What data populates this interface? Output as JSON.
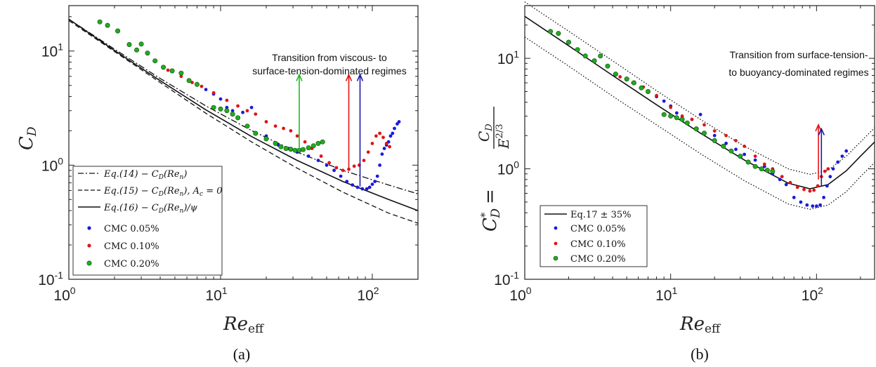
{
  "chart_data": [
    {
      "type": "scatter",
      "panel": "(a)",
      "xscale": "log",
      "yscale": "log",
      "xlim": [
        1,
        200
      ],
      "ylim": [
        0.1,
        25
      ],
      "xticks": [
        {
          "base": "10",
          "exp": "0",
          "value": 1
        },
        {
          "base": "10",
          "exp": "1",
          "value": 10
        },
        {
          "base": "10",
          "exp": "2",
          "value": 100
        }
      ],
      "yticks": [
        {
          "base": "10",
          "exp": "-1",
          "value": 0.1
        },
        {
          "base": "10",
          "exp": "0",
          "value": 1
        },
        {
          "base": "10",
          "exp": "1",
          "value": 10
        }
      ],
      "xlabel": "Re_eff",
      "ylabel": "C_D",
      "annotation": [
        "Transition from viscous- to",
        "surface-tension-dominated regimes"
      ],
      "arrows": [
        {
          "x": 33,
          "y0": 1.35,
          "y1": 6.2,
          "color": "#22bb22"
        },
        {
          "x": 70,
          "y0": 0.9,
          "y1": 6.2,
          "color": "#e01515"
        },
        {
          "x": 83,
          "y0": 0.65,
          "y1": 6.2,
          "color": "#1a1aaa"
        }
      ],
      "lines": [
        {
          "name": "Eq.(14) − C_D(Re_n)",
          "style": "dashdot",
          "x": [
            1,
            2,
            4,
            8,
            16,
            32,
            64,
            128,
            200
          ],
          "y": [
            19.0,
            10.4,
            5.75,
            3.3,
            2.01,
            1.3,
            0.9,
            0.67,
            0.56
          ]
        },
        {
          "name": "Eq.(15) − C_D(Re_n), A_c = 0",
          "style": "dashed",
          "x": [
            1,
            2,
            4,
            8,
            16,
            32,
            64,
            128,
            200
          ],
          "y": [
            18.5,
            9.9,
            5.3,
            2.85,
            1.6,
            0.94,
            0.58,
            0.38,
            0.31
          ]
        },
        {
          "name": "Eq.(16) − C_D(Re_n)/ψ",
          "style": "solid",
          "x": [
            1,
            2,
            4,
            8,
            16,
            32,
            64,
            128,
            200
          ],
          "y": [
            19.0,
            10.1,
            5.5,
            3.05,
            1.78,
            1.1,
            0.72,
            0.5,
            0.4
          ]
        }
      ],
      "series": [
        {
          "name": "CMC 0.05%",
          "color": "#1a1adc",
          "x": [
            8,
            9,
            10,
            11,
            12,
            14,
            16,
            20,
            24,
            28,
            32,
            38,
            44,
            50,
            56,
            62,
            68,
            74,
            80,
            86,
            92,
            96,
            100,
            104,
            108,
            112,
            116,
            120,
            124,
            128,
            132,
            136,
            140,
            146,
            150
          ],
          "y": [
            4.6,
            4.2,
            3.8,
            3.2,
            3.0,
            2.9,
            3.2,
            1.8,
            1.5,
            1.4,
            1.3,
            1.2,
            1.1,
            1.0,
            0.9,
            0.8,
            0.72,
            0.67,
            0.64,
            0.62,
            0.62,
            0.64,
            0.68,
            0.72,
            0.8,
            1.0,
            1.25,
            1.4,
            1.5,
            1.6,
            1.8,
            1.9,
            2.1,
            2.3,
            2.4
          ]
        },
        {
          "name": "CMC 0.10%",
          "color": "#e01515",
          "x": [
            4.5,
            5.5,
            6.5,
            7.5,
            9,
            11,
            13,
            15,
            17,
            20,
            23,
            26,
            29,
            32,
            36,
            40,
            46,
            52,
            58,
            64,
            70,
            76,
            82,
            88,
            94,
            100,
            106,
            112,
            118,
            124,
            130
          ],
          "y": [
            6.8,
            6.0,
            5.3,
            4.9,
            4.3,
            3.7,
            3.3,
            3.0,
            2.8,
            2.4,
            2.2,
            2.1,
            2.0,
            1.8,
            1.6,
            1.4,
            1.2,
            1.05,
            0.95,
            0.9,
            0.92,
            0.98,
            1.0,
            1.1,
            1.3,
            1.55,
            1.8,
            1.9,
            1.75,
            1.55,
            1.45
          ]
        },
        {
          "name": "CMC 0.20%",
          "color": "#22aa22",
          "x": [
            1.6,
            1.8,
            2.1,
            2.5,
            2.8,
            3.0,
            3.3,
            3.7,
            4.2,
            4.8,
            5.5,
            6.2,
            7,
            9,
            10,
            11,
            12,
            13,
            15,
            17,
            20,
            23,
            25,
            27,
            29,
            31,
            33,
            35,
            38,
            41,
            44,
            47
          ],
          "y": [
            18.0,
            16.8,
            15.0,
            11.4,
            10.2,
            11.5,
            9.6,
            8.2,
            7.2,
            6.7,
            6.4,
            5.5,
            5.1,
            3.2,
            3.1,
            3.0,
            2.8,
            2.6,
            2.2,
            1.9,
            1.7,
            1.55,
            1.45,
            1.4,
            1.38,
            1.35,
            1.35,
            1.37,
            1.42,
            1.48,
            1.55,
            1.6
          ]
        }
      ],
      "legend": {
        "placement": "bottom-left",
        "line_entries": [
          "Eq.(14) − C_D(Re_n)",
          "Eq.(15) − C_D(Re_n), A_c = 0",
          "Eq.(16) − C_D(Re_n)/ψ"
        ],
        "marker_entries": [
          "CMC 0.05%",
          "CMC 0.10%",
          "CMC 0.20%"
        ]
      }
    },
    {
      "type": "scatter",
      "panel": "(b)",
      "xscale": "log",
      "yscale": "log",
      "xlim": [
        1,
        250
      ],
      "ylim": [
        0.1,
        30
      ],
      "xticks": [
        {
          "base": "10",
          "exp": "0",
          "value": 1
        },
        {
          "base": "10",
          "exp": "1",
          "value": 10
        },
        {
          "base": "10",
          "exp": "2",
          "value": 100
        }
      ],
      "yticks": [
        {
          "base": "10",
          "exp": "-1",
          "value": 0.1
        },
        {
          "base": "10",
          "exp": "0",
          "value": 1
        },
        {
          "base": "10",
          "exp": "1",
          "value": 10
        }
      ],
      "xlabel": "Re_eff",
      "ylabel": "C*_D = C_D / E^(2/3)",
      "annotation": [
        "Transition from surface-tension-",
        "to buoyancy-dominated regimes"
      ],
      "arrows": [
        {
          "x": 103,
          "y0": 0.8,
          "y1": 2.5,
          "color": "#e01515"
        },
        {
          "x": 108,
          "y0": 0.7,
          "y1": 2.3,
          "color": "#1a1aaa"
        }
      ],
      "lines": [
        {
          "name": "Eq.17",
          "style": "solid",
          "x": [
            1,
            2,
            4,
            8,
            16,
            32,
            64,
            90,
            120,
            160,
            200,
            250
          ],
          "y": [
            24.0,
            13.0,
            7.0,
            3.8,
            2.1,
            1.2,
            0.74,
            0.66,
            0.72,
            0.96,
            1.3,
            1.75
          ]
        },
        {
          "name": "+35%",
          "style": "dotted",
          "x": [
            1,
            2,
            4,
            8,
            16,
            32,
            64,
            90,
            120,
            160,
            200,
            250
          ],
          "y": [
            32.4,
            17.6,
            9.5,
            5.1,
            2.8,
            1.6,
            1.0,
            0.89,
            0.97,
            1.3,
            1.75,
            2.35
          ]
        },
        {
          "name": "−35%",
          "style": "dotted",
          "x": [
            1,
            2,
            4,
            8,
            16,
            32,
            64,
            90,
            120,
            160,
            200,
            250
          ],
          "y": [
            15.6,
            8.5,
            4.55,
            2.5,
            1.37,
            0.78,
            0.48,
            0.43,
            0.47,
            0.62,
            0.85,
            1.14
          ]
        }
      ],
      "series": [
        {
          "name": "CMC 0.05%",
          "color": "#1a1adc",
          "x": [
            8,
            9,
            10,
            11,
            12,
            14,
            16,
            20,
            24,
            28,
            32,
            38,
            44,
            50,
            56,
            62,
            70,
            78,
            86,
            94,
            100,
            106,
            112,
            118,
            124,
            130,
            140,
            150,
            160
          ],
          "y": [
            4.5,
            4.1,
            3.7,
            3.2,
            2.9,
            2.8,
            3.1,
            2.0,
            1.7,
            1.5,
            1.35,
            1.2,
            1.05,
            0.9,
            0.8,
            0.72,
            0.55,
            0.5,
            0.47,
            0.46,
            0.46,
            0.47,
            0.55,
            0.7,
            0.85,
            1.0,
            1.15,
            1.3,
            1.45
          ]
        },
        {
          "name": "CMC 0.10%",
          "color": "#e01515",
          "x": [
            4.5,
            5.5,
            6.5,
            8,
            10,
            12,
            14,
            17,
            20,
            24,
            28,
            32,
            38,
            44,
            50,
            58,
            66,
            74,
            82,
            90,
            96,
            102,
            108,
            114,
            120
          ],
          "y": [
            6.8,
            6.0,
            5.5,
            4.6,
            3.6,
            3.0,
            2.8,
            2.5,
            2.2,
            2.0,
            1.8,
            1.6,
            1.3,
            1.1,
            1.0,
            0.85,
            0.75,
            0.68,
            0.65,
            0.63,
            0.64,
            0.7,
            0.85,
            0.95,
            1.0
          ]
        },
        {
          "name": "CMC 0.20%",
          "color": "#22aa22",
          "x": [
            1.5,
            1.7,
            2.0,
            2.3,
            2.6,
            3.0,
            3.3,
            3.7,
            4.2,
            5.0,
            5.6,
            6.3,
            7,
            9,
            10,
            11,
            12,
            13,
            15,
            17,
            20,
            23,
            26,
            30,
            34,
            38,
            42,
            46,
            50
          ],
          "y": [
            17.5,
            16.8,
            14.0,
            12.0,
            10.5,
            9.5,
            10.5,
            8.5,
            7.2,
            6.5,
            6.0,
            5.4,
            5.0,
            3.1,
            3.0,
            2.9,
            2.8,
            2.6,
            2.3,
            2.1,
            1.8,
            1.6,
            1.45,
            1.3,
            1.15,
            1.05,
            1.0,
            0.97,
            0.95
          ]
        }
      ],
      "legend": {
        "placement": "bottom-left",
        "line_entries": [
          "Eq.17 ± 35%"
        ],
        "marker_entries": [
          "CMC 0.05%",
          "CMC 0.10%",
          "CMC 0.20%"
        ]
      }
    }
  ],
  "captions": [
    "(a)",
    "(b)"
  ]
}
